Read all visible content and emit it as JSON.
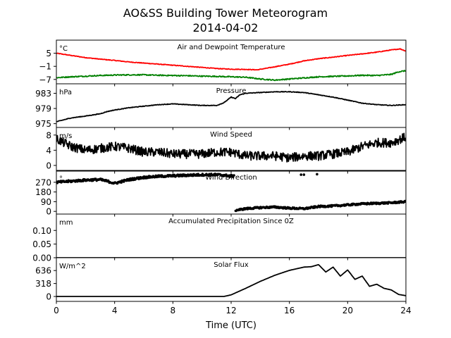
{
  "figure": {
    "title_line1": "AO&SS Building Tower Meteorogram",
    "title_line2": "2014-04-02",
    "xlabel": "Time (UTC)",
    "xticks": [
      "0",
      "4",
      "8",
      "12",
      "16",
      "20",
      "24"
    ]
  },
  "chart_data": [
    {
      "type": "line",
      "title": "Air and Dewpoint Temperature",
      "unit_label": "°C",
      "xlim": [
        0,
        24
      ],
      "ylim": [
        -9,
        11
      ],
      "yticks": [
        5,
        -1,
        -7
      ],
      "ytick_labels": [
        "5",
        "−1",
        "−7"
      ],
      "series": [
        {
          "color": "#ff0000",
          "jitter": 0.15,
          "x": [
            0,
            1,
            2,
            3,
            4,
            5,
            6,
            7,
            8,
            9,
            10,
            11,
            12,
            13,
            13.8,
            14.5,
            15,
            16,
            17,
            18,
            19,
            20,
            21,
            22,
            23,
            23.6,
            24
          ],
          "values": [
            5.0,
            4.0,
            3.0,
            2.3,
            1.7,
            1.0,
            0.5,
            0.0,
            -0.5,
            -1.0,
            -1.5,
            -2.0,
            -2.3,
            -2.4,
            -2.6,
            -1.8,
            -1.2,
            0.0,
            1.5,
            2.5,
            3.2,
            4.0,
            4.7,
            5.5,
            6.5,
            7.0,
            6.0
          ]
        },
        {
          "color": "#008000",
          "jitter": 0.25,
          "x": [
            0,
            1,
            2,
            3,
            4,
            5,
            6,
            7,
            8,
            9,
            10,
            11,
            12,
            13,
            14,
            15,
            16,
            17,
            18,
            19,
            20,
            21,
            22,
            23,
            23.5,
            24
          ],
          "values": [
            -6.2,
            -5.8,
            -5.5,
            -5.2,
            -5.0,
            -4.9,
            -4.9,
            -5.1,
            -5.2,
            -5.3,
            -5.5,
            -5.6,
            -5.8,
            -6.0,
            -6.8,
            -7.3,
            -6.8,
            -6.3,
            -5.8,
            -5.6,
            -5.4,
            -5.1,
            -5.2,
            -4.7,
            -3.5,
            -3.0
          ]
        }
      ]
    },
    {
      "type": "line",
      "title": "Pressure",
      "unit_label": "hPa",
      "xlim": [
        0,
        24
      ],
      "ylim": [
        974,
        985.5
      ],
      "yticks": [
        983,
        979,
        975
      ],
      "ytick_labels": [
        "983",
        "979",
        "975"
      ],
      "series": [
        {
          "color": "#000000",
          "jitter": 0.08,
          "x": [
            0,
            1,
            2,
            3,
            3.5,
            4,
            5,
            6,
            7,
            8,
            9,
            10,
            11,
            11.5,
            12,
            12.3,
            12.6,
            13,
            14,
            15,
            16,
            17,
            18,
            19,
            20,
            21,
            22,
            23,
            24
          ],
          "values": [
            975.5,
            976.5,
            977.0,
            977.6,
            978.2,
            978.6,
            979.2,
            979.6,
            980.0,
            980.2,
            980.0,
            979.8,
            979.8,
            980.5,
            982.0,
            981.6,
            982.6,
            983.0,
            983.2,
            983.4,
            983.4,
            983.2,
            982.6,
            982.0,
            981.2,
            980.4,
            980.0,
            979.8,
            980.0
          ]
        }
      ]
    },
    {
      "type": "line",
      "title": "Wind Speed",
      "unit_label": "m/s",
      "xlim": [
        0,
        24
      ],
      "ylim": [
        -1.5,
        10
      ],
      "yticks": [
        8,
        4,
        0
      ],
      "ytick_labels": [
        "8",
        "4",
        "0"
      ],
      "series": [
        {
          "color": "#000000",
          "jitter": 1.2,
          "x": [
            0,
            1,
            2,
            3,
            4,
            5,
            6,
            7,
            8,
            9,
            10,
            11,
            12,
            13,
            14,
            15,
            16,
            17,
            18,
            19,
            20,
            21,
            22,
            23,
            24
          ],
          "values": [
            7.0,
            5.0,
            4.0,
            4.5,
            5.0,
            4.5,
            3.5,
            3.5,
            3.0,
            3.0,
            3.0,
            3.5,
            3.5,
            2.5,
            2.5,
            2.5,
            2.0,
            2.5,
            2.5,
            3.0,
            3.5,
            5.0,
            6.0,
            6.0,
            7.5
          ]
        }
      ]
    },
    {
      "type": "scatter",
      "title": "Wind Direction",
      "unit_label": "°",
      "xlim": [
        0,
        24
      ],
      "ylim": [
        -25,
        380
      ],
      "yticks": [
        270,
        180,
        90,
        0
      ],
      "ytick_labels": [
        "270",
        "180",
        "90",
        "0"
      ],
      "series": [
        {
          "color": "#000000",
          "jitter": 10,
          "x": [
            0,
            1,
            2,
            3,
            3.5,
            4,
            5,
            6,
            7,
            8,
            9,
            10,
            11,
            12,
            12.2
          ],
          "values": [
            270,
            280,
            290,
            295,
            280,
            260,
            295,
            315,
            325,
            330,
            335,
            340,
            340,
            330,
            325
          ]
        },
        {
          "color": "#000000",
          "jitter": 8,
          "x": [
            12.3,
            13,
            14,
            15,
            16,
            17,
            18,
            19,
            20,
            21,
            22,
            23,
            24
          ],
          "values": [
            10,
            25,
            35,
            40,
            30,
            25,
            45,
            50,
            60,
            70,
            75,
            80,
            90
          ]
        }
      ],
      "isolated_points": {
        "x": [
          11.9,
          16.8,
          17.0,
          17.9
        ],
        "values": [
          320,
          340,
          340,
          345
        ]
      }
    },
    {
      "type": "line",
      "title": "Accumulated Precipitation Since 0Z",
      "unit_label": "mm",
      "xlim": [
        0,
        24
      ],
      "ylim": [
        0,
        0.16
      ],
      "yticks": [
        0.1,
        0.05,
        0.0
      ],
      "ytick_labels": [
        "0.10",
        "0.05",
        "0.00"
      ],
      "series": [
        {
          "color": "#000000",
          "jitter": 0,
          "x": [
            0,
            24
          ],
          "values": [
            0,
            0
          ]
        }
      ]
    },
    {
      "type": "line",
      "title": "Solar Flux",
      "unit_label": "W/m^2",
      "xlim": [
        0,
        24
      ],
      "ylim": [
        -120,
        950
      ],
      "yticks": [
        636,
        318,
        0
      ],
      "ytick_labels": [
        "636",
        "318",
        "0"
      ],
      "series": [
        {
          "color": "#000000",
          "jitter": 0,
          "x": [
            0,
            11.5,
            12,
            13,
            14,
            15,
            16,
            17,
            17.5,
            18,
            18.5,
            19,
            19.5,
            20,
            20.5,
            21,
            21.5,
            22,
            22.5,
            23,
            23.5,
            24
          ],
          "values": [
            0,
            0,
            40,
            200,
            370,
            520,
            640,
            720,
            730,
            780,
            600,
            720,
            500,
            650,
            420,
            500,
            250,
            300,
            200,
            160,
            50,
            20
          ]
        }
      ]
    }
  ]
}
